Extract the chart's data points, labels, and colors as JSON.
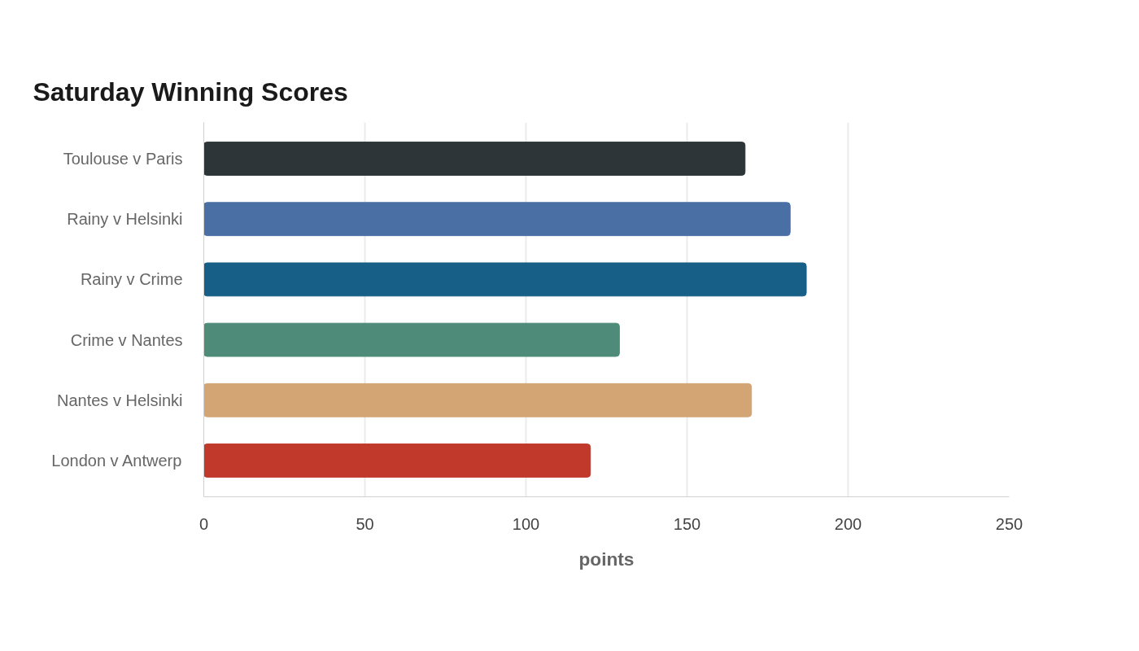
{
  "chart_data": {
    "type": "bar",
    "orientation": "horizontal",
    "title": "Saturday Winning Scores",
    "xlabel": "points",
    "categories": [
      "Toulouse v Paris",
      "Rainy v Helsinki",
      "Rainy v Crime",
      "Crime v Nantes",
      "Nantes v Helsinki",
      "London v Antwerp"
    ],
    "values": [
      168,
      182,
      187,
      129,
      170,
      120
    ],
    "colors": [
      "#2d3538",
      "#4a6fa5",
      "#185f87",
      "#4e8c79",
      "#d3a574",
      "#c0392b"
    ],
    "xlim": [
      0,
      250
    ],
    "xticks": [
      0,
      50,
      100,
      150,
      200,
      250
    ],
    "grid": "x"
  }
}
